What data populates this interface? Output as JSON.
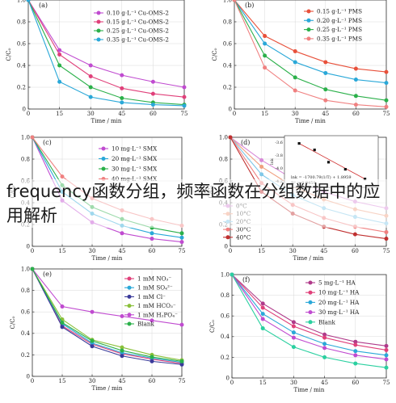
{
  "overlay_text": "frequency函数分组，频率函数在分组数据中的应用解析",
  "chart_data": [
    {
      "type": "line",
      "panel": "(a)",
      "x": [
        0,
        15,
        30,
        45,
        60,
        75
      ],
      "xlim": [
        0,
        75
      ],
      "ylim": [
        0,
        1.0
      ],
      "xticks": [
        "0",
        "15",
        "30",
        "45",
        "60",
        "75"
      ],
      "yticks": [
        "0",
        "0.2",
        "0.4",
        "0.6",
        "0.8",
        "1.0"
      ],
      "xlabel": "Time / min",
      "ylabel": "C/C₀",
      "series": [
        {
          "name": "0.10 g·L⁻¹ Cu-OMS-2",
          "color": "#c04bd0",
          "values": [
            1.0,
            0.54,
            0.4,
            0.31,
            0.25,
            0.2
          ]
        },
        {
          "name": "0.15 g·L⁻¹ Cu-OMS-2",
          "color": "#e0407a",
          "values": [
            1.0,
            0.5,
            0.3,
            0.19,
            0.14,
            0.11
          ]
        },
        {
          "name": "0.25 g·L⁻¹ Cu-OMS-2",
          "color": "#2bb04a",
          "values": [
            1.0,
            0.4,
            0.2,
            0.1,
            0.06,
            0.04
          ]
        },
        {
          "name": "0.35 g·L⁻¹ Cu-OMS-2",
          "color": "#2aa8d8",
          "values": [
            1.0,
            0.25,
            0.11,
            0.06,
            0.04,
            0.03
          ]
        }
      ]
    },
    {
      "type": "line",
      "panel": "(b)",
      "x": [
        0,
        15,
        30,
        45,
        60,
        75
      ],
      "xlim": [
        0,
        75
      ],
      "ylim": [
        0,
        1.0
      ],
      "xticks": [
        "0",
        "15",
        "30",
        "45",
        "60",
        "75"
      ],
      "yticks": [
        "0",
        "0.2",
        "0.4",
        "0.6",
        "0.8",
        "1.0"
      ],
      "xlabel": "Time / min",
      "ylabel": "C/C₀",
      "series": [
        {
          "name": "0.15 g·L⁻¹ PMS",
          "color": "#e8503a",
          "values": [
            1.0,
            0.67,
            0.53,
            0.43,
            0.37,
            0.34
          ]
        },
        {
          "name": "0.20 g·L⁻¹ PMS",
          "color": "#2aa8d8",
          "values": [
            1.0,
            0.6,
            0.43,
            0.33,
            0.27,
            0.24
          ]
        },
        {
          "name": "0.25 g·L⁻¹ PMS",
          "color": "#2bb04a",
          "values": [
            1.0,
            0.49,
            0.29,
            0.18,
            0.12,
            0.08
          ]
        },
        {
          "name": "0.35 g·L⁻¹ PMS",
          "color": "#f08080",
          "values": [
            1.0,
            0.38,
            0.17,
            0.08,
            0.04,
            0.02
          ]
        }
      ]
    },
    {
      "type": "line",
      "panel": "(c)",
      "x": [
        0,
        15,
        30,
        45,
        60,
        75
      ],
      "xlim": [
        0,
        75
      ],
      "ylim": [
        0,
        1.0
      ],
      "xticks": [
        "0",
        "15",
        "30",
        "45",
        "60",
        "75"
      ],
      "yticks": [
        "0",
        "0.2",
        "0.4",
        "0.6",
        "0.8",
        "1.0"
      ],
      "xlabel": "Time / min",
      "ylabel": "C/C₀",
      "series": [
        {
          "name": "10 mg·L⁻¹ SMX",
          "color": "#c04bd0",
          "values": [
            1.0,
            0.42,
            0.22,
            0.12,
            0.07,
            0.04
          ]
        },
        {
          "name": "20 mg·L⁻¹ SMX",
          "color": "#2aa8d8",
          "values": [
            1.0,
            0.5,
            0.3,
            0.19,
            0.12,
            0.08
          ]
        },
        {
          "name": "30 mg·L⁻¹ SMX",
          "color": "#2bb04a",
          "values": [
            1.0,
            0.56,
            0.36,
            0.25,
            0.17,
            0.12
          ]
        },
        {
          "name": "40 mg·L⁻¹ SMX",
          "color": "#f08080",
          "values": [
            1.0,
            0.64,
            0.44,
            0.33,
            0.25,
            0.19
          ]
        }
      ]
    },
    {
      "type": "line",
      "panel": "(d)",
      "x": [
        0,
        15,
        30,
        45,
        60,
        75
      ],
      "xlim": [
        0,
        75
      ],
      "ylim": [
        0,
        1.0
      ],
      "xticks": [
        "0",
        "15",
        "30",
        "45",
        "60",
        "75"
      ],
      "yticks": [
        "0",
        "0.2",
        "0.4",
        "0.6",
        "0.8",
        "1.0"
      ],
      "xlabel": "Time / min",
      "ylabel": "C/C₀",
      "series": [
        {
          "name": "0°C",
          "color": "#d88ad8",
          "values": [
            1.0,
            0.79,
            0.62,
            0.5,
            0.41,
            0.35
          ]
        },
        {
          "name": "10°C",
          "color": "#f0a080",
          "values": [
            1.0,
            0.73,
            0.55,
            0.43,
            0.34,
            0.28
          ]
        },
        {
          "name": "20°C",
          "color": "#80c8e8",
          "values": [
            1.0,
            0.66,
            0.47,
            0.35,
            0.27,
            0.21
          ]
        },
        {
          "name": "30°C",
          "color": "#f08080",
          "values": [
            1.0,
            0.58,
            0.38,
            0.26,
            0.18,
            0.13
          ]
        },
        {
          "name": "40°C",
          "color": "#c03030",
          "values": [
            1.0,
            0.5,
            0.3,
            0.18,
            0.11,
            0.07
          ]
        }
      ],
      "inset": {
        "ylabel": "lnk",
        "yticks": [
          "-3.6",
          "-3.8",
          "-4.0",
          "-4.2"
        ],
        "points": [
          [
            0.003195,
            -3.62
          ],
          [
            0.00325,
            -3.72
          ],
          [
            0.0033,
            -3.91
          ],
          [
            0.00336,
            -4.02
          ],
          [
            0.00343,
            -4.17
          ]
        ],
        "equation": "lnk = -1700.79(1/T) + 1.8959",
        "r2": "R² = 0.9459"
      }
    },
    {
      "type": "line",
      "panel": "(e)",
      "x": [
        0,
        15,
        30,
        45,
        60,
        75
      ],
      "xlim": [
        0,
        75
      ],
      "ylim": [
        0,
        1.0
      ],
      "xticks": [
        "0",
        "15",
        "30",
        "45",
        "60",
        "75"
      ],
      "yticks": [
        "0",
        "0.2",
        "0.4",
        "0.6",
        "0.8",
        "1.0"
      ],
      "xlabel": "Time / min",
      "ylabel": "C/C₀",
      "series": [
        {
          "name": "1 mM NO₃⁻",
          "color": "#e0407a",
          "values": [
            1.0,
            0.47,
            0.3,
            0.21,
            0.16,
            0.12
          ]
        },
        {
          "name": "1 mM SO₄²⁻",
          "color": "#2aa8d8",
          "values": [
            1.0,
            0.49,
            0.31,
            0.22,
            0.17,
            0.13
          ]
        },
        {
          "name": "1 mM Cl⁻",
          "color": "#3a3a9a",
          "values": [
            1.0,
            0.46,
            0.28,
            0.19,
            0.14,
            0.11
          ]
        },
        {
          "name": "1 mM HCO₃⁻",
          "color": "#8ac03a",
          "values": [
            1.0,
            0.53,
            0.34,
            0.27,
            0.2,
            0.15
          ]
        },
        {
          "name": "1 mM H₂PO₄⁻",
          "color": "#c04bd0",
          "values": [
            1.0,
            0.65,
            0.6,
            0.56,
            0.52,
            0.48
          ]
        },
        {
          "name": "Blank",
          "color": "#2bb04a",
          "values": [
            1.0,
            0.5,
            0.33,
            0.24,
            0.18,
            0.14
          ]
        }
      ]
    },
    {
      "type": "line",
      "panel": "(f)",
      "x": [
        0,
        15,
        30,
        45,
        60,
        75
      ],
      "xlim": [
        0,
        75
      ],
      "ylim": [
        0,
        1.0
      ],
      "xticks": [
        "0",
        "15",
        "30",
        "45",
        "60",
        "75"
      ],
      "yticks": [
        "0",
        "0.2",
        "0.4",
        "0.6",
        "0.8",
        "1.0"
      ],
      "xlabel": "Time / min",
      "ylabel": "C/C₀",
      "series": [
        {
          "name": "5 mg·L⁻¹ HA",
          "color": "#b03a8a",
          "values": [
            1.0,
            0.72,
            0.54,
            0.42,
            0.35,
            0.31
          ]
        },
        {
          "name": "10 mg·L⁻¹ HA",
          "color": "#e0407a",
          "values": [
            1.0,
            0.68,
            0.5,
            0.39,
            0.32,
            0.27
          ]
        },
        {
          "name": "20 mg·L⁻¹ HA",
          "color": "#2aa8d8",
          "values": [
            1.0,
            0.62,
            0.44,
            0.33,
            0.26,
            0.22
          ]
        },
        {
          "name": "30 mg·L⁻¹ HA",
          "color": "#c04bd0",
          "values": [
            1.0,
            0.57,
            0.39,
            0.29,
            0.22,
            0.18
          ]
        },
        {
          "name": "Blank",
          "color": "#2bd0a0",
          "values": [
            1.0,
            0.48,
            0.3,
            0.2,
            0.14,
            0.1
          ]
        }
      ]
    }
  ]
}
